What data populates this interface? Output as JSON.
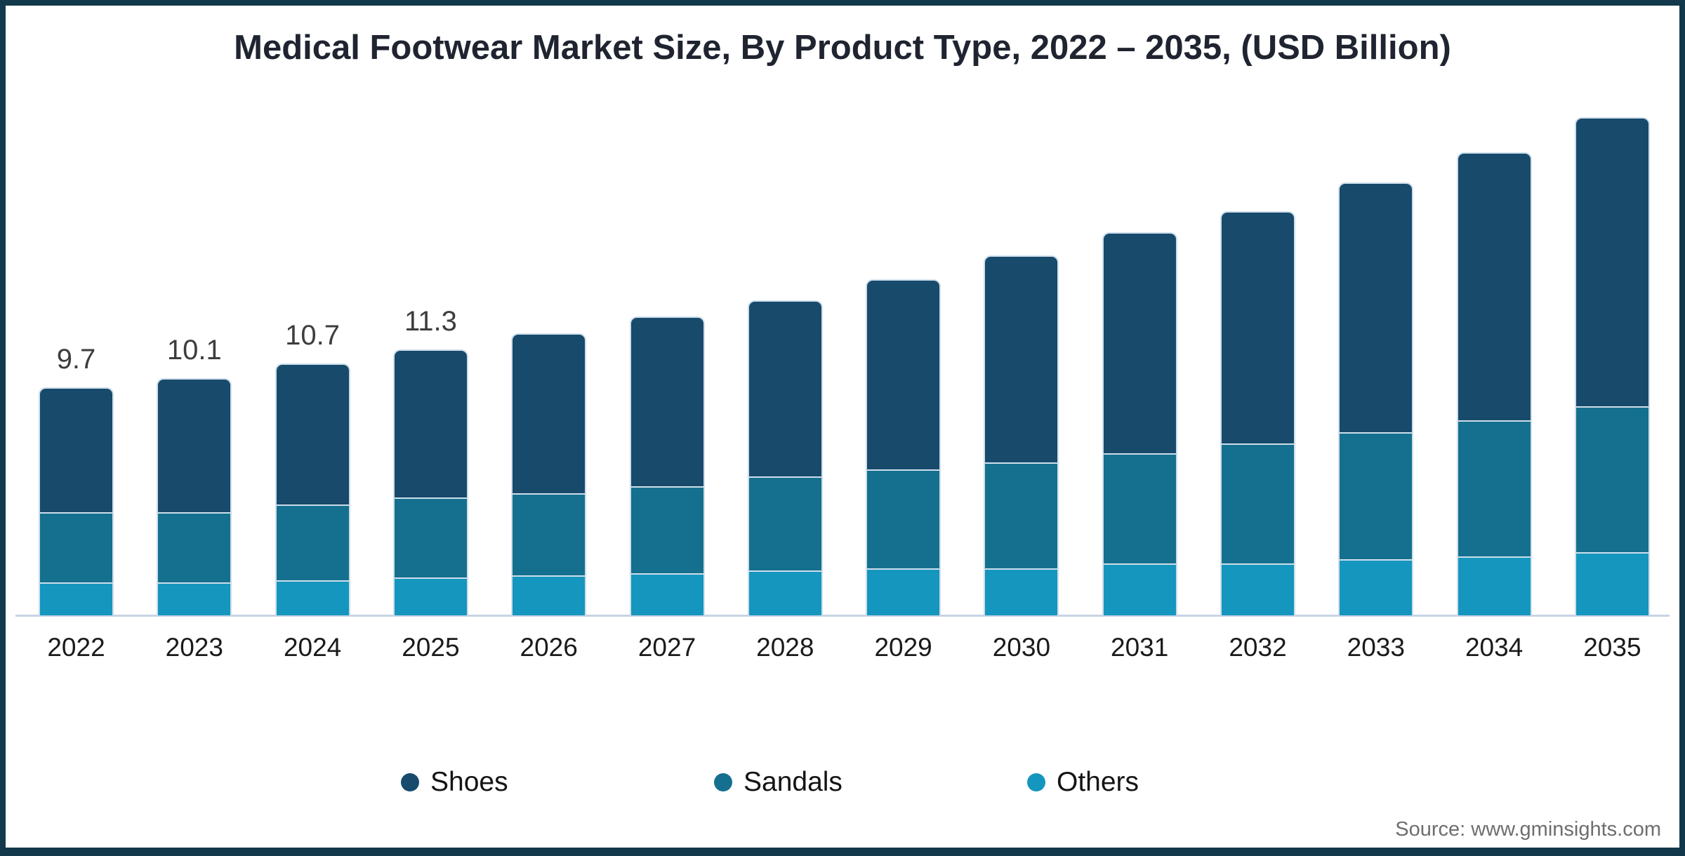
{
  "title": "Medical Footwear Market Size, By Product Type, 2022 – 2035, (USD Billion)",
  "source": "Source: www.gminsights.com",
  "colors": {
    "shoes": "#174A6B",
    "sandals": "#14708E",
    "others": "#1596BE",
    "frame": "#12384B",
    "axis_line": "#C8D4E6",
    "segment_separator": "#CFDEEB",
    "title_text": "#1F2430",
    "value_label_text": "#3D3D3D",
    "year_label_text": "#1A1A1A",
    "source_text": "#6E6E6E",
    "background": "#FFFFFF"
  },
  "legend": {
    "position": "bottom",
    "items": [
      {
        "label": "Shoes",
        "color": "#174A6B"
      },
      {
        "label": "Sandals",
        "color": "#14708E"
      },
      {
        "label": "Others",
        "color": "#1596BE"
      }
    ]
  },
  "chart_data": {
    "type": "bar",
    "stacked": true,
    "title": "Medical Footwear Market Size, By Product Type, 2022 – 2035, (USD Billion)",
    "xlabel": "",
    "ylabel": "USD Billion",
    "grid": false,
    "categories": [
      "2022",
      "2023",
      "2024",
      "2025",
      "2026",
      "2027",
      "2028",
      "2029",
      "2030",
      "2031",
      "2032",
      "2033",
      "2034",
      "2035"
    ],
    "series": [
      {
        "name": "Shoes",
        "color": "#174A6B",
        "values": [
          5.3,
          5.7,
          6.0,
          6.3,
          6.8,
          7.2,
          7.5,
          8.1,
          8.8,
          9.4,
          9.9,
          10.6,
          11.4,
          12.3
        ]
      },
      {
        "name": "Sandals",
        "color": "#14708E",
        "values": [
          3.0,
          3.0,
          3.2,
          3.4,
          3.5,
          3.7,
          4.0,
          4.2,
          4.5,
          4.7,
          5.1,
          5.4,
          5.8,
          6.2
        ]
      },
      {
        "name": "Others",
        "color": "#1596BE",
        "values": [
          1.4,
          1.4,
          1.5,
          1.6,
          1.7,
          1.8,
          1.9,
          2.0,
          2.0,
          2.2,
          2.2,
          2.4,
          2.5,
          2.7
        ]
      }
    ],
    "totals": [
      9.7,
      10.1,
      10.7,
      11.3,
      12.0,
      12.7,
      13.4,
      14.3,
      15.3,
      16.3,
      17.2,
      18.4,
      19.7,
      21.2
    ],
    "bar_labels": [
      "9.7",
      "10.1",
      "10.7",
      "11.3",
      null,
      null,
      null,
      null,
      null,
      null,
      null,
      null,
      null,
      null
    ],
    "ylim": [
      0,
      23
    ]
  }
}
